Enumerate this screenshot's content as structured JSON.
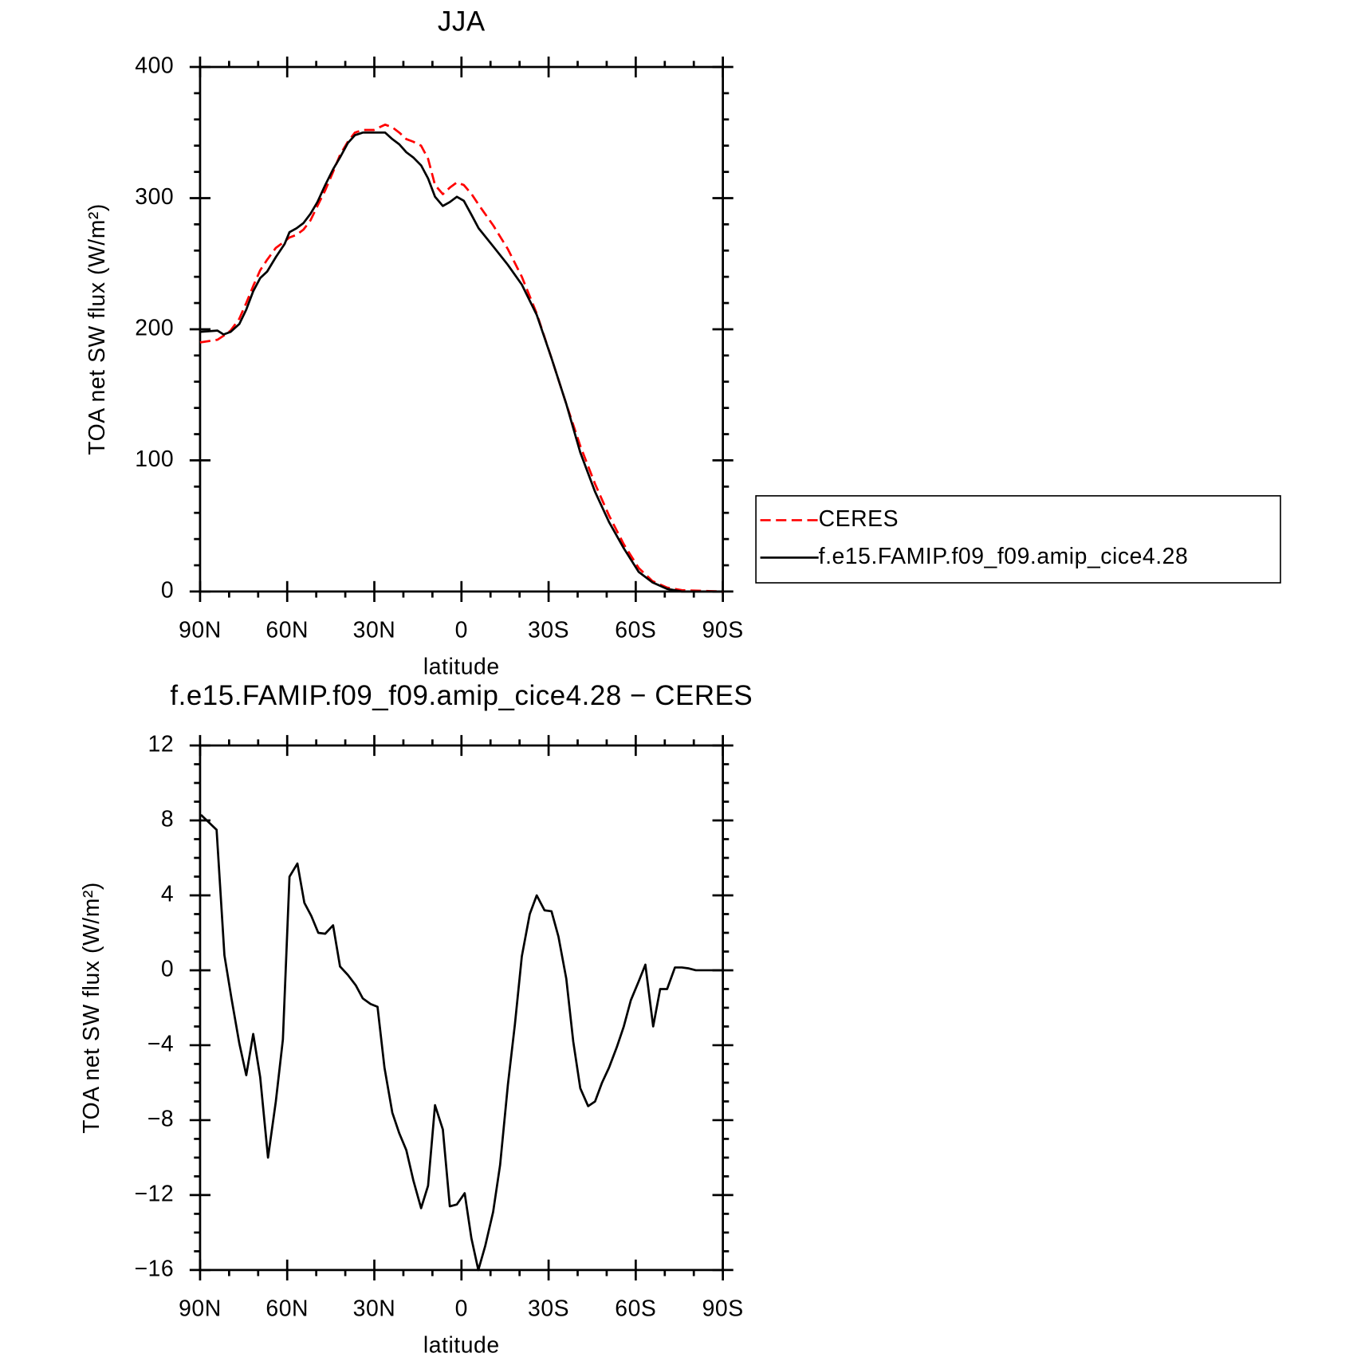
{
  "chart_data": [
    {
      "type": "line",
      "title": "JJA",
      "xlabel": "latitude",
      "ylabel": "TOA net SW flux (W/m²)",
      "x": [
        90,
        84,
        81.9,
        79.5,
        76.5,
        74.1,
        71.7,
        69.3,
        66.9,
        63.9,
        60.9,
        59.2,
        56.8,
        54.4,
        52,
        49.6,
        46.9,
        44.2,
        41.8,
        39.1,
        36.7,
        34,
        30.2,
        26.3,
        23.8,
        21.4,
        19,
        16.6,
        13.9,
        11.5,
        9.1,
        6.4,
        4,
        1.6,
        -0.8,
        -3.5,
        -5.9,
        -11,
        -16,
        -20.8,
        -25.9,
        -31,
        -36.1,
        -40.9,
        -46,
        -50.8,
        -55.9,
        -61,
        -65.7,
        -70.8,
        -75.9,
        -90
      ],
      "series": [
        {
          "name": "CERES",
          "color": "#ff0000",
          "dashed": true,
          "values": [
            190,
            192,
            195,
            199,
            208,
            220,
            233,
            245,
            253,
            262,
            267,
            270,
            272,
            276,
            283,
            294,
            306,
            320,
            333,
            343,
            350,
            352,
            352,
            356,
            354,
            350,
            345,
            343,
            340,
            330,
            310,
            303,
            308,
            312,
            310,
            303,
            295,
            279,
            261,
            240,
            212,
            178,
            143,
            111,
            82,
            58,
            36,
            18,
            8,
            3,
            1,
            0
          ]
        },
        {
          "name": "f.e15.FAMIP.f09_f09.amip_cice4.28",
          "color": "#000000",
          "dashed": false,
          "values": [
            198,
            199,
            196,
            198,
            204,
            215,
            229,
            239,
            244,
            255,
            265,
            274,
            277,
            281,
            288,
            297,
            310,
            322,
            331,
            342,
            348,
            350,
            350,
            350,
            345,
            341,
            335,
            331,
            325,
            315,
            301,
            294,
            297,
            301,
            298,
            287,
            277,
            263,
            249,
            234,
            211,
            178,
            143,
            106,
            76,
            53,
            33,
            15,
            7,
            2,
            0,
            0
          ]
        }
      ],
      "xlim": [
        90,
        -90
      ],
      "xticks": [
        {
          "value": 90,
          "label": "90N"
        },
        {
          "value": 60,
          "label": "60N"
        },
        {
          "value": 30,
          "label": "30N"
        },
        0,
        {
          "value": -30,
          "label": "30S"
        },
        {
          "value": -60,
          "label": "60S"
        },
        {
          "value": -90,
          "label": "90S"
        }
      ],
      "ylim": [
        0,
        400
      ],
      "yticks": [
        0,
        100,
        200,
        300,
        400
      ],
      "legend": "right"
    },
    {
      "type": "line",
      "title": "f.e15.FAMIP.f09_f09.amip_cice4.28 − CERES",
      "xlabel": "latitude",
      "ylabel": "TOA net SW flux (W/m²)",
      "x": [
        89.7,
        84.3,
        81.6,
        79.2,
        76.5,
        74.1,
        71.7,
        69.3,
        66.6,
        63.9,
        61.5,
        59.2,
        56.5,
        54.1,
        51.7,
        49.3,
        46.9,
        44.2,
        41.8,
        39.1,
        36.4,
        34,
        31.3,
        28.9,
        26.5,
        23.8,
        21.4,
        19,
        16.6,
        13.9,
        11.5,
        9.1,
        6.4,
        4,
        1.6,
        -1.1,
        -3.4,
        -5.8,
        -8.2,
        -10.9,
        -13.3,
        -16,
        -18.4,
        -20.8,
        -23.5,
        -25.9,
        -28.6,
        -31,
        -33.4,
        -36.1,
        -38.5,
        -40.9,
        -43.6,
        -46,
        -48.4,
        -50.8,
        -53.5,
        -55.9,
        -58.3,
        -61,
        -63.3,
        -66,
        -68.4,
        -70.8,
        -73.5,
        -75.9,
        -78.3,
        -80.7,
        -90
      ],
      "values": [
        8.3,
        7.5,
        0.8,
        -1.5,
        -3.9,
        -5.6,
        -3.4,
        -5.7,
        -10,
        -7,
        -3.7,
        5,
        5.7,
        3.6,
        2.9,
        2,
        1.95,
        2.4,
        0.2,
        -0.25,
        -0.8,
        -1.5,
        -1.8,
        -1.95,
        -5.2,
        -7.6,
        -8.7,
        -9.6,
        -11.2,
        -12.7,
        -11.5,
        -7.2,
        -8.5,
        -12.6,
        -12.5,
        -11.9,
        -14.3,
        -16,
        -14.7,
        -12.9,
        -10.4,
        -6.1,
        -2.9,
        0.75,
        3,
        4,
        3.2,
        3.15,
        1.8,
        -0.45,
        -3.8,
        -6.3,
        -7.25,
        -7,
        -6,
        -5.2,
        -4.1,
        -3,
        -1.6,
        -0.6,
        0.3,
        -3,
        -1,
        -1,
        0.15,
        0.15,
        0.1,
        0,
        0
      ],
      "color": "#000000",
      "xlim": [
        90,
        -90
      ],
      "xticks": [
        {
          "value": 90,
          "label": "90N"
        },
        {
          "value": 60,
          "label": "60N"
        },
        {
          "value": 30,
          "label": "30N"
        },
        0,
        {
          "value": -30,
          "label": "30S"
        },
        {
          "value": -60,
          "label": "60S"
        },
        {
          "value": -90,
          "label": "90S"
        }
      ],
      "ylim": [
        -16,
        12
      ],
      "yticks": [
        {
          "value": -16,
          "label": "−16"
        },
        {
          "value": -12,
          "label": "−12"
        },
        {
          "value": -8,
          "label": "−8"
        },
        {
          "value": -4,
          "label": "−4"
        },
        0,
        4,
        8,
        12
      ]
    }
  ]
}
